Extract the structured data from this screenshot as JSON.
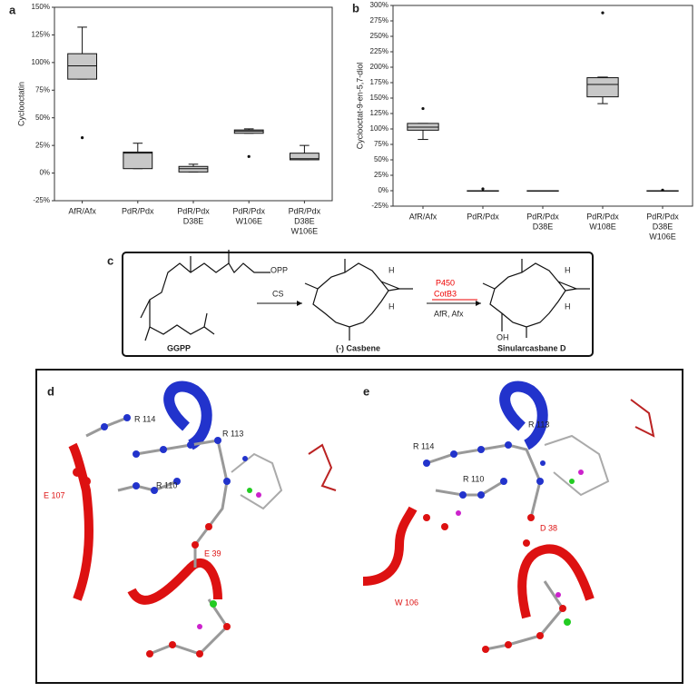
{
  "chart_data": [
    {
      "type": "box",
      "label": "a",
      "ylabel": "Cyclooctatin",
      "categories": [
        [
          "AfR/Afx"
        ],
        [
          "PdR/Pdx"
        ],
        [
          "PdR/Pdx",
          "D38E"
        ],
        [
          "PdR/Pdx",
          "W106E"
        ],
        [
          "PdR/Pdx",
          "D38E",
          "W106E"
        ]
      ],
      "boxes": [
        {
          "min": 85,
          "q1": 85,
          "median": 97,
          "q3": 108,
          "max": 132,
          "outliers": [
            32
          ]
        },
        {
          "min": 4,
          "q1": 4,
          "median": 18,
          "q3": 19,
          "max": 27,
          "outliers": []
        },
        {
          "min": 1,
          "q1": 1,
          "median": 4,
          "q3": 6,
          "max": 8,
          "outliers": []
        },
        {
          "min": 36,
          "q1": 36,
          "median": 38,
          "q3": 39,
          "max": 40,
          "outliers": [
            15
          ]
        },
        {
          "min": 12,
          "q1": 12,
          "median": 13,
          "q3": 18,
          "max": 25,
          "outliers": []
        }
      ],
      "color": "#c8c8c8",
      "ylim": [
        -25,
        150
      ],
      "yticks": [
        {
          "value": -25,
          "label": "-25%"
        },
        {
          "value": 0,
          "label": "0%"
        },
        {
          "value": 25,
          "label": "25%"
        },
        {
          "value": 50,
          "label": "50%"
        },
        {
          "value": 75,
          "label": "75%"
        },
        {
          "value": 100,
          "label": "100%"
        },
        {
          "value": 125,
          "label": "125%"
        },
        {
          "value": 150,
          "label": "150%"
        }
      ]
    },
    {
      "type": "box",
      "label": "b",
      "ylabel": "Cyclooctat-9-en-5,7-diol",
      "categories": [
        [
          "AfR/Afx"
        ],
        [
          "PdR/Pdx"
        ],
        [
          "PdR/Pdx",
          "D38E"
        ],
        [
          "PdR/Pdx",
          "W108E"
        ],
        [
          "PdR/Pdx",
          "D38E",
          "W106E"
        ]
      ],
      "boxes": [
        {
          "min": 83,
          "q1": 98,
          "median": 103,
          "q3": 109,
          "max": 109,
          "outliers": [
            133
          ]
        },
        {
          "min": 0,
          "q1": 0,
          "median": 0,
          "q3": 0,
          "max": 0,
          "outliers": [
            3
          ]
        },
        {
          "min": 0,
          "q1": 0,
          "median": 0,
          "q3": 0,
          "max": 0,
          "outliers": []
        },
        {
          "min": 141,
          "q1": 152,
          "median": 172,
          "q3": 183,
          "max": 184,
          "outliers": [
            288
          ]
        },
        {
          "min": 0,
          "q1": 0,
          "median": 0,
          "q3": 0,
          "max": 0,
          "outliers": [
            1
          ]
        }
      ],
      "color": "#c8c8c8",
      "ylim": [
        -25,
        300
      ],
      "yticks": [
        {
          "value": -25,
          "label": "-25%"
        },
        {
          "value": 0,
          "label": "0%"
        },
        {
          "value": 25,
          "label": "25%"
        },
        {
          "value": 50,
          "label": "50%"
        },
        {
          "value": 75,
          "label": "75%"
        },
        {
          "value": 100,
          "label": "100%"
        },
        {
          "value": 125,
          "label": "125%"
        },
        {
          "value": 150,
          "label": "150%"
        },
        {
          "value": 175,
          "label": "175%"
        },
        {
          "value": 200,
          "label": "200%"
        },
        {
          "value": 225,
          "label": "225%"
        },
        {
          "value": 250,
          "label": "250%"
        },
        {
          "value": 275,
          "label": "275%"
        },
        {
          "value": 300,
          "label": "300%"
        }
      ]
    }
  ],
  "scheme": {
    "label": "c",
    "compounds": [
      "GGPP",
      "(-) Casbene",
      "Sinularcasbane D"
    ],
    "enzyme1": "CS",
    "enzyme2": [
      "P450",
      "CotB3"
    ],
    "cofactors": "AfR, Afx",
    "atoms": [
      "OPP",
      "H",
      "H",
      "H",
      "H",
      "OH"
    ]
  },
  "panels": [
    {
      "label": "d",
      "residues": [
        "R 114",
        "R 113",
        "R 110",
        "E 107",
        "E 39"
      ]
    },
    {
      "label": "e",
      "residues": [
        "R 113",
        "R 114",
        "R 110",
        "W 106",
        "D 38"
      ]
    }
  ]
}
